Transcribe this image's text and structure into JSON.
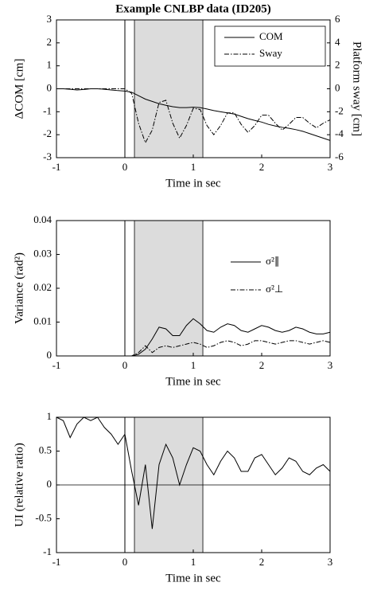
{
  "chart_data": [
    {
      "type": "line",
      "title": "Example CNLBP data (ID205)",
      "xlabel": "Time in sec",
      "ylabel": "ΔCOM [cm]",
      "y2label": "Platform sway [cm]",
      "x": [
        -1,
        -0.9,
        -0.8,
        -0.7,
        -0.6,
        -0.5,
        -0.4,
        -0.3,
        -0.2,
        -0.1,
        0,
        0.1,
        0.2,
        0.3,
        0.4,
        0.5,
        0.6,
        0.7,
        0.8,
        0.9,
        1,
        1.1,
        1.2,
        1.3,
        1.4,
        1.5,
        1.6,
        1.7,
        1.8,
        1.9,
        2,
        2.1,
        2.2,
        2.3,
        2.4,
        2.5,
        2.6,
        2.7,
        2.8,
        2.9,
        3
      ],
      "series": [
        {
          "name": "COM",
          "color": "#000000",
          "line_style": "solid",
          "values": [
            0,
            0,
            -0.02,
            -0.05,
            -0.03,
            0,
            0,
            -0.02,
            -0.05,
            -0.08,
            -0.1,
            -0.15,
            -0.3,
            -0.45,
            -0.55,
            -0.65,
            -0.72,
            -0.78,
            -0.82,
            -0.82,
            -0.8,
            -0.82,
            -0.88,
            -0.95,
            -1,
            -1.05,
            -1.1,
            -1.2,
            -1.3,
            -1.38,
            -1.45,
            -1.55,
            -1.62,
            -1.68,
            -1.72,
            -1.78,
            -1.85,
            -1.95,
            -2.05,
            -2.15,
            -2.25
          ]
        },
        {
          "name": "Sway",
          "color": "#000000",
          "line_style": "dashdot",
          "axis": "y2",
          "values": [
            0,
            0,
            0,
            0,
            0,
            0,
            0,
            0,
            0,
            0,
            0,
            -0.4,
            -3,
            -4.7,
            -3.6,
            -1.2,
            -1,
            -3,
            -4.3,
            -3.2,
            -1.7,
            -1.8,
            -3.2,
            -4,
            -3.2,
            -2.1,
            -2.1,
            -3.1,
            -3.8,
            -3.2,
            -2.3,
            -2.3,
            -3,
            -3.6,
            -3.1,
            -2.5,
            -2.5,
            -3,
            -3.4,
            -3,
            -2.7
          ]
        }
      ],
      "xlim": [
        -1,
        3
      ],
      "xticks": [
        -1,
        0,
        1,
        2,
        3
      ],
      "ylim": [
        -3,
        3
      ],
      "yticks": [
        -3,
        -2,
        -1,
        0,
        1,
        2,
        3
      ],
      "y2lim": [
        -6,
        6
      ],
      "y2ticks": [
        -6,
        -4,
        -2,
        0,
        2,
        4,
        6
      ],
      "grid": false,
      "legend": "upper right",
      "legend_box": true,
      "span": [
        0.14,
        1.14
      ],
      "vline": 0
    },
    {
      "type": "line",
      "xlabel": "Time in sec",
      "ylabel": "Variance (rad²)",
      "x": [
        -1,
        -0.9,
        -0.8,
        -0.7,
        -0.6,
        -0.5,
        -0.4,
        -0.3,
        -0.2,
        -0.1,
        0,
        0.1,
        0.2,
        0.3,
        0.4,
        0.5,
        0.6,
        0.7,
        0.8,
        0.9,
        1,
        1.1,
        1.2,
        1.3,
        1.4,
        1.5,
        1.6,
        1.7,
        1.8,
        1.9,
        2,
        2.1,
        2.2,
        2.3,
        2.4,
        2.5,
        2.6,
        2.7,
        2.8,
        2.9,
        3
      ],
      "series": [
        {
          "name": "σ²∥",
          "color": "#000000",
          "line_style": "solid",
          "values": [
            0,
            0,
            0,
            0,
            0,
            0,
            0,
            0,
            0,
            0,
            0,
            0,
            0.0005,
            0.002,
            0.005,
            0.0085,
            0.008,
            0.006,
            0.006,
            0.009,
            0.011,
            0.0095,
            0.0075,
            0.007,
            0.0085,
            0.0095,
            0.009,
            0.0075,
            0.007,
            0.008,
            0.009,
            0.0085,
            0.0075,
            0.007,
            0.0075,
            0.0085,
            0.008,
            0.007,
            0.0065,
            0.0065,
            0.007
          ]
        },
        {
          "name": "σ²⊥",
          "color": "#000000",
          "line_style": "dashdot",
          "values": [
            0,
            0,
            0,
            0,
            0,
            0,
            0,
            0,
            0,
            0,
            0,
            0,
            0.001,
            0.003,
            0.001,
            0.0025,
            0.003,
            0.0025,
            0.003,
            0.0035,
            0.004,
            0.0035,
            0.0025,
            0.003,
            0.004,
            0.0045,
            0.004,
            0.003,
            0.0035,
            0.0045,
            0.0045,
            0.004,
            0.0035,
            0.004,
            0.0045,
            0.0045,
            0.004,
            0.0035,
            0.004,
            0.0045,
            0.004
          ]
        }
      ],
      "xlim": [
        -1,
        3
      ],
      "xticks": [
        -1,
        0,
        1,
        2,
        3
      ],
      "ylim": [
        0,
        0.04
      ],
      "yticks": [
        0,
        0.01,
        0.02,
        0.03,
        0.04
      ],
      "grid": false,
      "legend": "upper right",
      "legend_box": false,
      "span": [
        0.14,
        1.14
      ],
      "vline": 0
    },
    {
      "type": "line",
      "xlabel": "Time in sec",
      "ylabel": "UI (relative ratio)",
      "x": [
        -1,
        -0.9,
        -0.8,
        -0.7,
        -0.6,
        -0.5,
        -0.4,
        -0.3,
        -0.2,
        -0.1,
        0,
        0.1,
        0.2,
        0.3,
        0.4,
        0.5,
        0.6,
        0.7,
        0.8,
        0.9,
        1,
        1.1,
        1.2,
        1.3,
        1.4,
        1.5,
        1.6,
        1.7,
        1.8,
        1.9,
        2,
        2.1,
        2.2,
        2.3,
        2.4,
        2.5,
        2.6,
        2.7,
        2.8,
        2.9,
        3
      ],
      "series": [
        {
          "color": "#000000",
          "line_style": "solid",
          "values": [
            1,
            0.95,
            0.7,
            0.9,
            1,
            0.95,
            1,
            0.85,
            0.75,
            0.6,
            0.75,
            0.2,
            -0.3,
            0.3,
            -0.65,
            0.3,
            0.6,
            0.4,
            0,
            0.3,
            0.55,
            0.5,
            0.3,
            0.15,
            0.35,
            0.5,
            0.4,
            0.2,
            0.2,
            0.4,
            0.45,
            0.3,
            0.15,
            0.25,
            0.4,
            0.35,
            0.2,
            0.15,
            0.25,
            0.3,
            0.2
          ]
        }
      ],
      "xlim": [
        -1,
        3
      ],
      "xticks": [
        -1,
        0,
        1,
        2,
        3
      ],
      "ylim": [
        -1,
        1
      ],
      "yticks": [
        -1,
        -0.5,
        0,
        0.5,
        1
      ],
      "grid": false,
      "span": [
        0.14,
        1.14
      ],
      "vline": 0,
      "hline": 0
    }
  ]
}
